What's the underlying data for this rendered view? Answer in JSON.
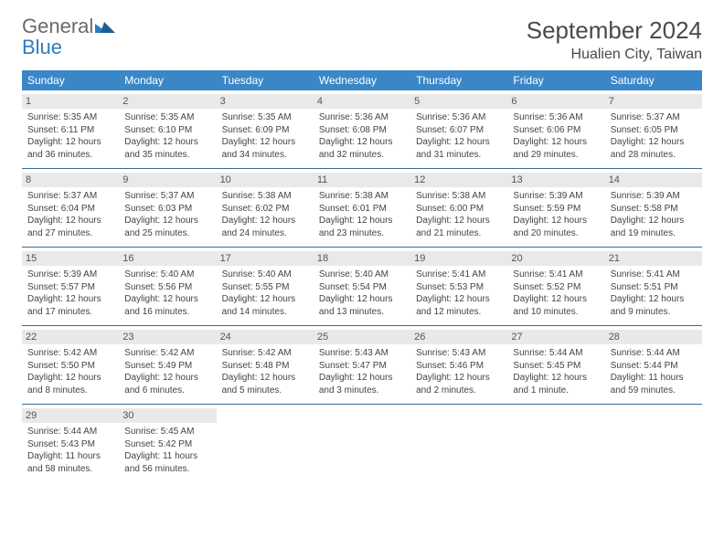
{
  "brand": {
    "part1": "General",
    "part2": "Blue"
  },
  "title": "September 2024",
  "location": "Hualien City, Taiwan",
  "colors": {
    "header_bg": "#3a87c8",
    "header_text": "#ffffff",
    "daynum_bg": "#e9e9e9",
    "rule": "#3a6b95",
    "logo_gray": "#6a6a6a",
    "logo_blue": "#2d7bc0"
  },
  "weekdays": [
    "Sunday",
    "Monday",
    "Tuesday",
    "Wednesday",
    "Thursday",
    "Friday",
    "Saturday"
  ],
  "weeks": [
    [
      {
        "n": "1",
        "sr": "Sunrise: 5:35 AM",
        "ss": "Sunset: 6:11 PM",
        "d1": "Daylight: 12 hours",
        "d2": "and 36 minutes."
      },
      {
        "n": "2",
        "sr": "Sunrise: 5:35 AM",
        "ss": "Sunset: 6:10 PM",
        "d1": "Daylight: 12 hours",
        "d2": "and 35 minutes."
      },
      {
        "n": "3",
        "sr": "Sunrise: 5:35 AM",
        "ss": "Sunset: 6:09 PM",
        "d1": "Daylight: 12 hours",
        "d2": "and 34 minutes."
      },
      {
        "n": "4",
        "sr": "Sunrise: 5:36 AM",
        "ss": "Sunset: 6:08 PM",
        "d1": "Daylight: 12 hours",
        "d2": "and 32 minutes."
      },
      {
        "n": "5",
        "sr": "Sunrise: 5:36 AM",
        "ss": "Sunset: 6:07 PM",
        "d1": "Daylight: 12 hours",
        "d2": "and 31 minutes."
      },
      {
        "n": "6",
        "sr": "Sunrise: 5:36 AM",
        "ss": "Sunset: 6:06 PM",
        "d1": "Daylight: 12 hours",
        "d2": "and 29 minutes."
      },
      {
        "n": "7",
        "sr": "Sunrise: 5:37 AM",
        "ss": "Sunset: 6:05 PM",
        "d1": "Daylight: 12 hours",
        "d2": "and 28 minutes."
      }
    ],
    [
      {
        "n": "8",
        "sr": "Sunrise: 5:37 AM",
        "ss": "Sunset: 6:04 PM",
        "d1": "Daylight: 12 hours",
        "d2": "and 27 minutes."
      },
      {
        "n": "9",
        "sr": "Sunrise: 5:37 AM",
        "ss": "Sunset: 6:03 PM",
        "d1": "Daylight: 12 hours",
        "d2": "and 25 minutes."
      },
      {
        "n": "10",
        "sr": "Sunrise: 5:38 AM",
        "ss": "Sunset: 6:02 PM",
        "d1": "Daylight: 12 hours",
        "d2": "and 24 minutes."
      },
      {
        "n": "11",
        "sr": "Sunrise: 5:38 AM",
        "ss": "Sunset: 6:01 PM",
        "d1": "Daylight: 12 hours",
        "d2": "and 23 minutes."
      },
      {
        "n": "12",
        "sr": "Sunrise: 5:38 AM",
        "ss": "Sunset: 6:00 PM",
        "d1": "Daylight: 12 hours",
        "d2": "and 21 minutes."
      },
      {
        "n": "13",
        "sr": "Sunrise: 5:39 AM",
        "ss": "Sunset: 5:59 PM",
        "d1": "Daylight: 12 hours",
        "d2": "and 20 minutes."
      },
      {
        "n": "14",
        "sr": "Sunrise: 5:39 AM",
        "ss": "Sunset: 5:58 PM",
        "d1": "Daylight: 12 hours",
        "d2": "and 19 minutes."
      }
    ],
    [
      {
        "n": "15",
        "sr": "Sunrise: 5:39 AM",
        "ss": "Sunset: 5:57 PM",
        "d1": "Daylight: 12 hours",
        "d2": "and 17 minutes."
      },
      {
        "n": "16",
        "sr": "Sunrise: 5:40 AM",
        "ss": "Sunset: 5:56 PM",
        "d1": "Daylight: 12 hours",
        "d2": "and 16 minutes."
      },
      {
        "n": "17",
        "sr": "Sunrise: 5:40 AM",
        "ss": "Sunset: 5:55 PM",
        "d1": "Daylight: 12 hours",
        "d2": "and 14 minutes."
      },
      {
        "n": "18",
        "sr": "Sunrise: 5:40 AM",
        "ss": "Sunset: 5:54 PM",
        "d1": "Daylight: 12 hours",
        "d2": "and 13 minutes."
      },
      {
        "n": "19",
        "sr": "Sunrise: 5:41 AM",
        "ss": "Sunset: 5:53 PM",
        "d1": "Daylight: 12 hours",
        "d2": "and 12 minutes."
      },
      {
        "n": "20",
        "sr": "Sunrise: 5:41 AM",
        "ss": "Sunset: 5:52 PM",
        "d1": "Daylight: 12 hours",
        "d2": "and 10 minutes."
      },
      {
        "n": "21",
        "sr": "Sunrise: 5:41 AM",
        "ss": "Sunset: 5:51 PM",
        "d1": "Daylight: 12 hours",
        "d2": "and 9 minutes."
      }
    ],
    [
      {
        "n": "22",
        "sr": "Sunrise: 5:42 AM",
        "ss": "Sunset: 5:50 PM",
        "d1": "Daylight: 12 hours",
        "d2": "and 8 minutes."
      },
      {
        "n": "23",
        "sr": "Sunrise: 5:42 AM",
        "ss": "Sunset: 5:49 PM",
        "d1": "Daylight: 12 hours",
        "d2": "and 6 minutes."
      },
      {
        "n": "24",
        "sr": "Sunrise: 5:42 AM",
        "ss": "Sunset: 5:48 PM",
        "d1": "Daylight: 12 hours",
        "d2": "and 5 minutes."
      },
      {
        "n": "25",
        "sr": "Sunrise: 5:43 AM",
        "ss": "Sunset: 5:47 PM",
        "d1": "Daylight: 12 hours",
        "d2": "and 3 minutes."
      },
      {
        "n": "26",
        "sr": "Sunrise: 5:43 AM",
        "ss": "Sunset: 5:46 PM",
        "d1": "Daylight: 12 hours",
        "d2": "and 2 minutes."
      },
      {
        "n": "27",
        "sr": "Sunrise: 5:44 AM",
        "ss": "Sunset: 5:45 PM",
        "d1": "Daylight: 12 hours",
        "d2": "and 1 minute."
      },
      {
        "n": "28",
        "sr": "Sunrise: 5:44 AM",
        "ss": "Sunset: 5:44 PM",
        "d1": "Daylight: 11 hours",
        "d2": "and 59 minutes."
      }
    ],
    [
      {
        "n": "29",
        "sr": "Sunrise: 5:44 AM",
        "ss": "Sunset: 5:43 PM",
        "d1": "Daylight: 11 hours",
        "d2": "and 58 minutes."
      },
      {
        "n": "30",
        "sr": "Sunrise: 5:45 AM",
        "ss": "Sunset: 5:42 PM",
        "d1": "Daylight: 11 hours",
        "d2": "and 56 minutes."
      },
      null,
      null,
      null,
      null,
      null
    ]
  ]
}
